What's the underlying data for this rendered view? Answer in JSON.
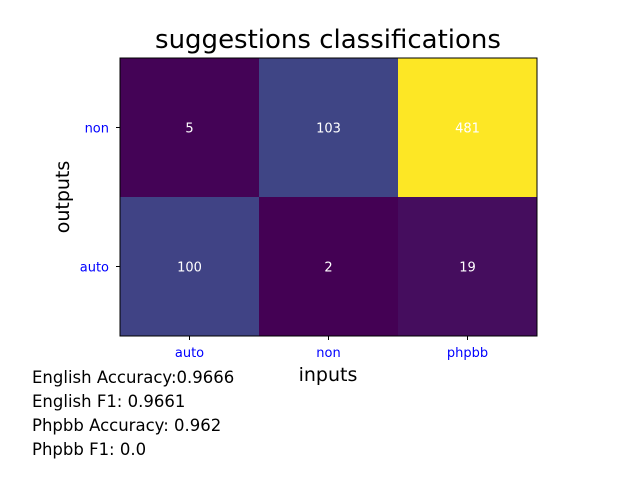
{
  "chart_data": {
    "type": "heatmap",
    "title": "suggestions classifications",
    "xlabel": "inputs",
    "ylabel": "outputs",
    "x_categories": [
      "auto",
      "non",
      "phpbb"
    ],
    "y_categories": [
      "non",
      "auto"
    ],
    "values": [
      [
        5,
        103,
        481
      ],
      [
        100,
        2,
        19
      ]
    ],
    "colormap": "viridis",
    "tick_label_color": "#0000ff",
    "cell_label_color": "#ffffff"
  },
  "stats": [
    "English Accuracy:0.9666",
    "English F1: 0.9661",
    "Phpbb Accuracy: 0.962",
    "Phpbb F1: 0.0"
  ]
}
